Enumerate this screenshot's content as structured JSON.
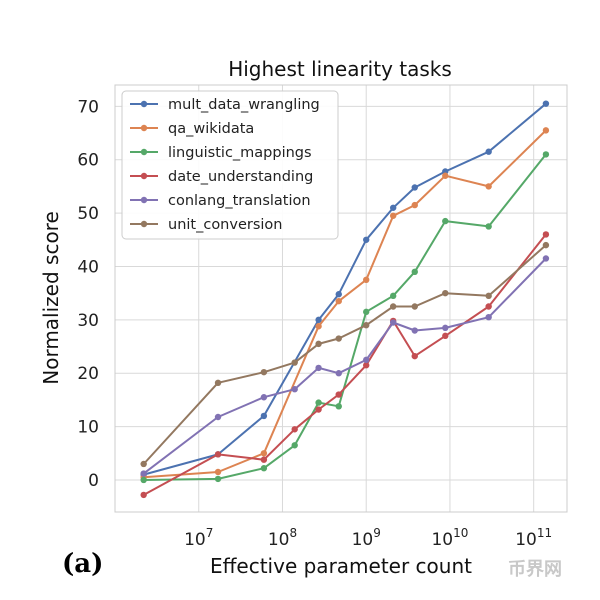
{
  "panel_label": "(a)",
  "watermark": "币界网",
  "chart_data": {
    "type": "line",
    "title": "Highest linearity tasks",
    "xlabel": "Effective parameter count",
    "ylabel": "Normalized score",
    "xscale": "log",
    "xlim": [
      1000000,
      250000000000
    ],
    "ylim": [
      -6,
      74
    ],
    "xticks": [
      {
        "value": 10000000,
        "base": "10",
        "exp": "7"
      },
      {
        "value": 100000000,
        "base": "10",
        "exp": "8"
      },
      {
        "value": 1000000000,
        "base": "10",
        "exp": "9"
      },
      {
        "value": 10000000000,
        "base": "10",
        "exp": "10"
      },
      {
        "value": 100000000000,
        "base": "10",
        "exp": "11"
      }
    ],
    "yticks": [
      0,
      10,
      20,
      30,
      40,
      50,
      60,
      70
    ],
    "grid": true,
    "legend_position": "top-left",
    "series": [
      {
        "name": "mult_data_wrangling",
        "color": "#4c72b0",
        "x": [
          2200000,
          17000000,
          60000000,
          270000000,
          470000000,
          1000000000,
          2100000000,
          3800000000,
          8800000000,
          29000000000,
          140000000000
        ],
        "y": [
          1.0,
          4.8,
          12.0,
          30.0,
          34.8,
          45.0,
          51.0,
          54.8,
          57.8,
          61.5,
          70.5
        ]
      },
      {
        "name": "qa_wikidata",
        "color": "#dd8452",
        "x": [
          2200000,
          17000000,
          60000000,
          270000000,
          470000000,
          1000000000,
          2100000000,
          3800000000,
          8800000000,
          29000000000,
          140000000000
        ],
        "y": [
          0.5,
          1.5,
          5.0,
          28.8,
          33.5,
          37.5,
          49.5,
          51.5,
          57.0,
          55.0,
          65.5
        ]
      },
      {
        "name": "linguistic_mappings",
        "color": "#55a868",
        "x": [
          2200000,
          17000000,
          60000000,
          140000000,
          270000000,
          470000000,
          1000000000,
          2100000000,
          3800000000,
          8800000000,
          29000000000,
          140000000000
        ],
        "y": [
          0.0,
          0.2,
          2.2,
          6.5,
          14.5,
          13.8,
          31.5,
          34.5,
          39.0,
          48.5,
          47.5,
          61.0
        ]
      },
      {
        "name": "date_understanding",
        "color": "#c44e52",
        "x": [
          2200000,
          17000000,
          60000000,
          140000000,
          270000000,
          470000000,
          1000000000,
          2100000000,
          3800000000,
          8800000000,
          29000000000,
          140000000000
        ],
        "y": [
          -2.8,
          4.8,
          3.8,
          9.5,
          13.2,
          16.0,
          21.5,
          29.8,
          23.2,
          27.0,
          32.5,
          46.0
        ]
      },
      {
        "name": "conlang_translation",
        "color": "#8172b3",
        "x": [
          2200000,
          17000000,
          60000000,
          140000000,
          270000000,
          470000000,
          1000000000,
          2100000000,
          3800000000,
          8800000000,
          29000000000,
          140000000000
        ],
        "y": [
          1.2,
          11.8,
          15.5,
          17.0,
          21.0,
          20.0,
          22.5,
          29.5,
          28.0,
          28.5,
          30.5,
          41.5
        ]
      },
      {
        "name": "unit_conversion",
        "color": "#937860",
        "x": [
          2200000,
          17000000,
          60000000,
          140000000,
          270000000,
          470000000,
          1000000000,
          2100000000,
          3800000000,
          8800000000,
          29000000000,
          140000000000
        ],
        "y": [
          3.0,
          18.2,
          20.2,
          22.0,
          25.5,
          26.5,
          29.0,
          32.5,
          32.5,
          35.0,
          34.5,
          44.0
        ]
      }
    ]
  }
}
